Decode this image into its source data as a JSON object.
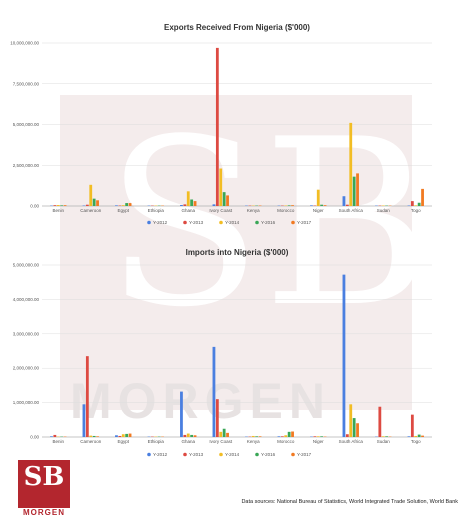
{
  "watermark": {
    "monogram": "SB",
    "word": "MORGEN"
  },
  "logo": {
    "monogram": "SB",
    "word": "MORGEN"
  },
  "source": "Data sources: National Bureau of Statistics, World Integrated Trade Solution, World Bank",
  "colors": {
    "Y-2012": "#4a7fe0",
    "Y-2013": "#dd4a42",
    "Y-2014": "#f2bd24",
    "Y-2016": "#3aa757",
    "Y-2017": "#f17a22"
  },
  "chart_data": [
    {
      "type": "bar",
      "title": "Exports Received From Nigeria ($'000)",
      "categories": [
        "Benin",
        "Cameroon",
        "Egypt",
        "Ethiopia",
        "Ghana",
        "Ivory Coast",
        "Kenya",
        "Morocco",
        "Niger",
        "South Africa",
        "Sudan",
        "Togo"
      ],
      "ylim": [
        0,
        10000000
      ],
      "yticks": [
        "0.00",
        "2,500,000.00",
        "5,000,000.00",
        "7,500,000.00",
        "10,000,000.00"
      ],
      "ytick_values": [
        0,
        2500000,
        5000000,
        7500000,
        10000000
      ],
      "series": [
        {
          "name": "Y-2012",
          "values": [
            20000,
            30000,
            40000,
            5000,
            60000,
            100000,
            5000,
            20000,
            40000,
            600000,
            10000,
            30000
          ]
        },
        {
          "name": "Y-2013",
          "values": [
            50000,
            80000,
            30000,
            5000,
            100000,
            9700000,
            10000,
            20000,
            30000,
            80000,
            20000,
            300000
          ]
        },
        {
          "name": "Y-2014",
          "values": [
            60000,
            1300000,
            50000,
            5000,
            900000,
            2300000,
            20000,
            30000,
            1000000,
            5100000,
            30000,
            40000
          ]
        },
        {
          "name": "Y-2016",
          "values": [
            40000,
            450000,
            180000,
            5000,
            400000,
            850000,
            20000,
            40000,
            80000,
            1800000,
            10000,
            200000
          ]
        },
        {
          "name": "Y-2017",
          "values": [
            50000,
            350000,
            180000,
            5000,
            300000,
            650000,
            30000,
            50000,
            50000,
            2000000,
            10000,
            1050000
          ]
        }
      ],
      "legend": [
        "Y-2012",
        "Y-2013",
        "Y-2014",
        "Y-2016",
        "Y-2017"
      ],
      "legend_position": "bottom"
    },
    {
      "type": "bar",
      "title": "Imports into Nigeria ($'000)",
      "categories": [
        "Benin",
        "Cameroon",
        "Egypt",
        "Ethiopia",
        "Ghana",
        "Ivory Coast",
        "Kenya",
        "Morocco",
        "Niger",
        "South Africa",
        "Sudan",
        "Togo"
      ],
      "ylim": [
        0,
        5000000
      ],
      "yticks": [
        "0.00",
        "1,000,000.00",
        "2,000,000.00",
        "3,000,000.00",
        "4,000,000.00",
        "5,000,000.00"
      ],
      "ytick_values": [
        0,
        1000000,
        2000000,
        3000000,
        4000000,
        5000000
      ],
      "series": [
        {
          "name": "Y-2012",
          "values": [
            20000,
            950000,
            50000,
            5000,
            1320000,
            2620000,
            10000,
            20000,
            10000,
            4720000,
            10000,
            20000
          ]
        },
        {
          "name": "Y-2013",
          "values": [
            60000,
            2350000,
            30000,
            5000,
            60000,
            1100000,
            10000,
            20000,
            20000,
            80000,
            880000,
            650000
          ]
        },
        {
          "name": "Y-2014",
          "values": [
            10000,
            40000,
            80000,
            5000,
            100000,
            150000,
            30000,
            50000,
            20000,
            950000,
            20000,
            30000
          ]
        },
        {
          "name": "Y-2016",
          "values": [
            10000,
            30000,
            90000,
            5000,
            60000,
            240000,
            20000,
            150000,
            20000,
            550000,
            20000,
            70000
          ]
        },
        {
          "name": "Y-2017",
          "values": [
            10000,
            20000,
            100000,
            5000,
            50000,
            120000,
            20000,
            160000,
            10000,
            400000,
            10000,
            40000
          ]
        }
      ],
      "legend": [
        "Y-2012",
        "Y-2013",
        "Y-2014",
        "Y-2016",
        "Y-2017"
      ],
      "legend_position": "bottom"
    }
  ]
}
